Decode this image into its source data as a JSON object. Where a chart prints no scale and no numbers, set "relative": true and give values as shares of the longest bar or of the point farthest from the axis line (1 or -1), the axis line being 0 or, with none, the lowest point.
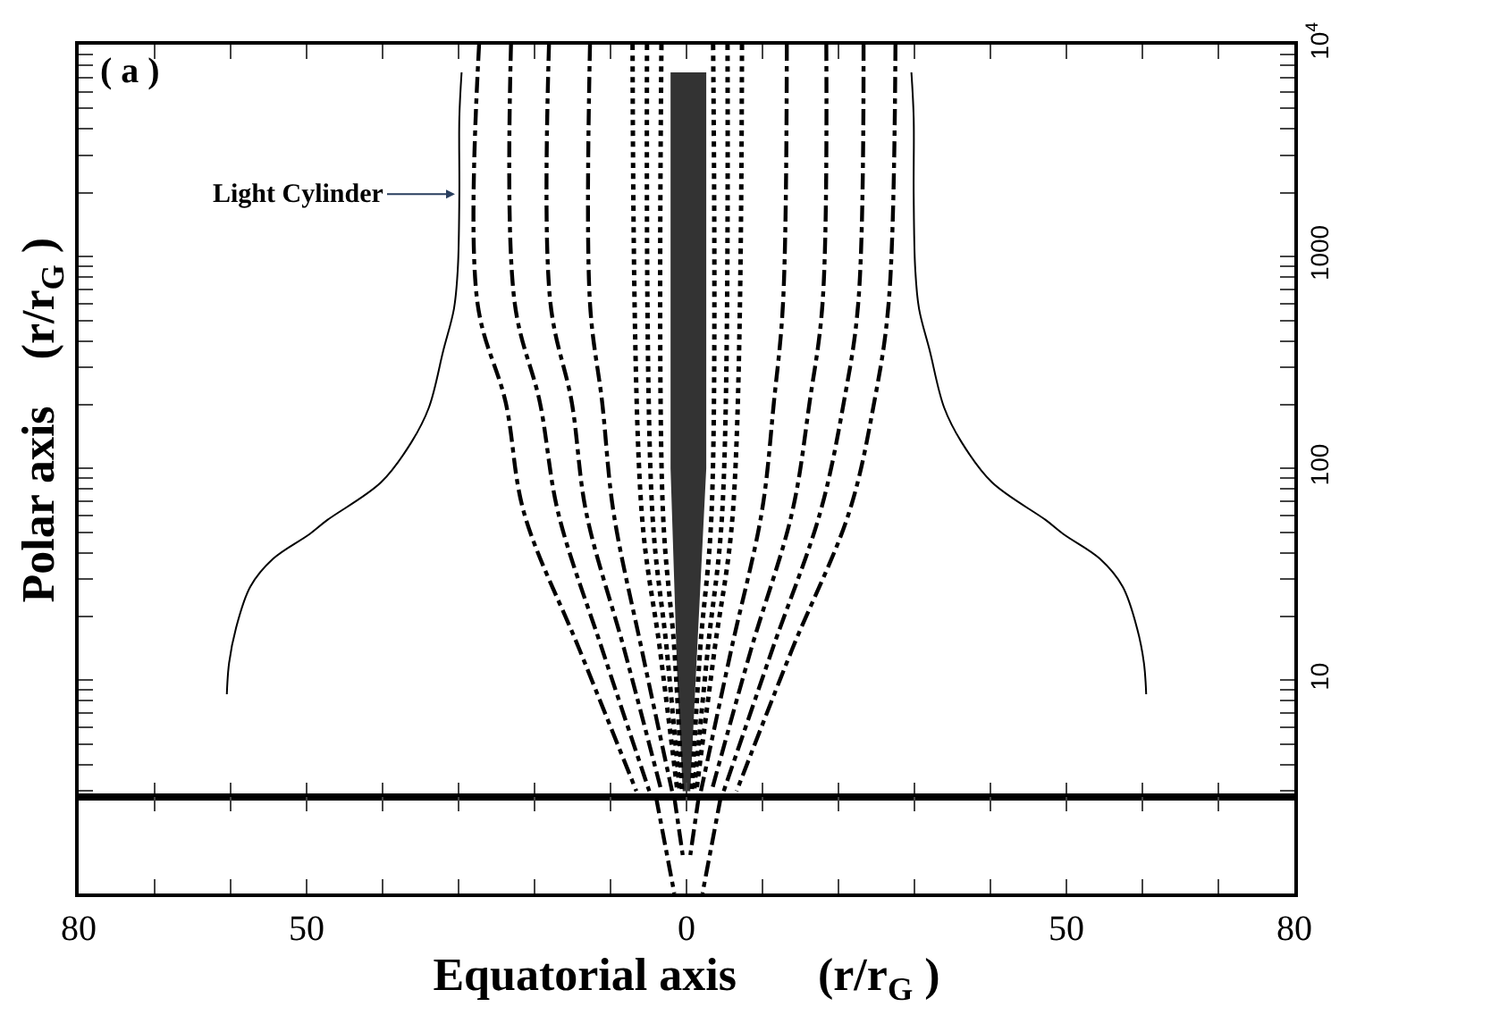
{
  "chart_data": [
    {
      "type": "line",
      "ylabel": "Polar axis    (r/r$_{G}$ )",
      "log": "y",
      "tick_labels": "y",
      "xlim": [
        -80,
        80
      ],
      "xticks": [
        {
          "value": -80,
          "label": null
        },
        {
          "value": -70,
          "label": null
        },
        {
          "value": -60,
          "label": null
        },
        {
          "value": -50,
          "label": null
        },
        {
          "value": -40,
          "label": null
        },
        {
          "value": -30,
          "label": null
        },
        {
          "value": -20,
          "label": null
        },
        {
          "value": -10,
          "label": null
        },
        {
          "value": 0,
          "label": null
        },
        {
          "value": 10,
          "label": null
        },
        {
          "value": 20,
          "label": null
        },
        {
          "value": 30,
          "label": null
        },
        {
          "value": 40,
          "label": null
        },
        {
          "value": 50,
          "label": null
        },
        {
          "value": 60,
          "label": null
        },
        {
          "value": 70,
          "label": null
        },
        {
          "value": 80,
          "label": null
        }
      ],
      "ylim": [
        2.8,
        10000
      ],
      "yticks": [
        {
          "value": 3,
          "label": null
        },
        {
          "value": 4,
          "label": null
        },
        {
          "value": 5,
          "label": null
        },
        {
          "value": 6,
          "label": null
        },
        {
          "value": 7,
          "label": null
        },
        {
          "value": 8,
          "label": null
        },
        {
          "value": 9,
          "label": null
        },
        10,
        {
          "value": 20,
          "label": null
        },
        {
          "value": 30,
          "label": null
        },
        {
          "value": 40,
          "label": null
        },
        {
          "value": 50,
          "label": null
        },
        {
          "value": 60,
          "label": null
        },
        {
          "value": 70,
          "label": null
        },
        {
          "value": 80,
          "label": null
        },
        {
          "value": 90,
          "label": null
        },
        100,
        {
          "value": 200,
          "label": null
        },
        {
          "value": 300,
          "label": null
        },
        {
          "value": 400,
          "label": null
        },
        {
          "value": 500,
          "label": null
        },
        {
          "value": 600,
          "label": null
        },
        {
          "value": 700,
          "label": null
        },
        {
          "value": 800,
          "label": null
        },
        {
          "value": 900,
          "label": null
        },
        1000,
        {
          "value": 2000,
          "label": null
        },
        {
          "value": 3000,
          "label": null
        },
        {
          "value": 4000,
          "label": null
        },
        {
          "value": 5000,
          "label": null
        },
        {
          "value": 6000,
          "label": null
        },
        {
          "value": 7000,
          "label": null
        },
        {
          "value": 8000,
          "label": null
        },
        {
          "value": 9000,
          "label": null
        },
        {
          "value": 10000,
          "label": "10$^{4}$"
        }
      ],
      "annotations": [
        "( a )",
        {
          "text": "Light Cylinder",
          "x": -30,
          "y": 1970
        }
      ],
      "series": [
        {
          "type": "area",
          "color": "#333333",
          "x": [
            -2.1,
            -2.1,
            -1.2,
            -0.5,
            0.5,
            1.2,
            2.6,
            2.6
          ],
          "values": [
            7400,
            100,
            10,
            3,
            3,
            10,
            100,
            7400
          ]
        },
        {
          "color": "#000000",
          "line_style": "solid",
          "x": [
            -29.6,
            -29.9,
            -29.9,
            -30.1,
            -30.6,
            -32.0,
            -33.9,
            -36.2,
            -40.2,
            -47.3,
            -49.6,
            -54.4,
            -57.4,
            -59.3,
            -60.2,
            -60.5
          ],
          "values": [
            7400,
            4500,
            1970,
            877,
            568,
            361,
            194,
            133,
            86,
            57,
            49,
            37.5,
            27.7,
            17.6,
            12.1,
            8.6
          ]
        },
        {
          "color": "#000000",
          "line_style": "solid",
          "x": [
            29.6,
            29.9,
            29.9,
            30.1,
            30.6,
            32.0,
            33.9,
            36.2,
            40.2,
            47.3,
            49.6,
            54.4,
            57.4,
            59.3,
            60.2,
            60.5
          ],
          "values": [
            7400,
            4500,
            1970,
            877,
            568,
            361,
            194,
            133,
            86,
            57,
            49,
            37.5,
            27.7,
            17.6,
            12.1,
            8.6
          ]
        },
        {
          "color": "#000000",
          "line_style": "dashed",
          "x": [
            -27.3,
            -27.5,
            -23.8,
            -21.4,
            -14.1,
            -6.6
          ],
          "values": [
            10000,
            600,
            205,
            62,
            14,
            3
          ]
        },
        {
          "color": "#000000",
          "line_style": "dashed",
          "x": [
            -23.1,
            -22.6,
            -19.3,
            -16.9,
            -11.1,
            -4.9
          ],
          "values": [
            10000,
            600,
            205,
            62,
            14,
            3
          ]
        },
        {
          "color": "#000000",
          "line_style": "dashed",
          "x": [
            -18.1,
            -17.9,
            -15.1,
            -13.2,
            -8.2,
            -3.3
          ],
          "values": [
            10000,
            600,
            205,
            62,
            14,
            3
          ]
        },
        {
          "color": "#000000",
          "line_style": "dashed",
          "x": [
            -12.7,
            -12.7,
            -11.1,
            -9.6,
            -5.9,
            -1.9
          ],
          "values": [
            10000,
            600,
            205,
            62,
            14,
            3
          ]
        },
        {
          "color": "#000000",
          "line_style": "dashed",
          "x": [
            13.2,
            12.7,
            11.5,
            9.9,
            5.9,
            1.9
          ],
          "values": [
            10000,
            600,
            205,
            62,
            14,
            3
          ]
        },
        {
          "color": "#000000",
          "line_style": "dashed",
          "x": [
            18.4,
            17.9,
            16.2,
            13.9,
            8.5,
            3.3
          ],
          "values": [
            10000,
            600,
            205,
            62,
            14,
            3
          ]
        },
        {
          "color": "#000000",
          "line_style": "dashed",
          "x": [
            23.3,
            22.6,
            20.7,
            17.6,
            11.3,
            4.9
          ],
          "values": [
            10000,
            600,
            205,
            62,
            14,
            3
          ]
        },
        {
          "color": "#000000",
          "line_style": "dashed",
          "x": [
            27.5,
            26.6,
            24.7,
            21.4,
            13.9,
            6.6
          ],
          "values": [
            10000,
            600,
            205,
            62,
            14,
            3
          ]
        },
        {
          "color": "#000000",
          "line_style": "dotted",
          "x": [
            -7.1,
            -5.9,
            -3.5,
            -1.2
          ],
          "values": [
            10000,
            62,
            14,
            3
          ]
        },
        {
          "color": "#000000",
          "line_style": "dotted",
          "x": [
            -5.2,
            -4.5,
            -2.6,
            -0.9
          ],
          "values": [
            10000,
            62,
            14,
            3
          ]
        },
        {
          "color": "#000000",
          "line_style": "dotted",
          "x": [
            -3.3,
            -3.1,
            -1.6,
            -0.6
          ],
          "values": [
            10000,
            62,
            14,
            3
          ]
        },
        {
          "color": "#000000",
          "line_style": "dotted",
          "x": [
            3.5,
            3.3,
            1.8,
            0.7
          ],
          "values": [
            10000,
            62,
            14,
            3
          ]
        },
        {
          "color": "#000000",
          "line_style": "dotted",
          "x": [
            5.4,
            4.7,
            2.8,
            1.0
          ],
          "values": [
            10000,
            62,
            14,
            3
          ]
        },
        {
          "color": "#000000",
          "line_style": "dotted",
          "x": [
            7.3,
            6.1,
            3.7,
            1.3
          ],
          "values": [
            10000,
            62,
            14,
            3
          ]
        }
      ]
    },
    {
      "type": "line",
      "relative": true,
      "tick_labels": "x",
      "xlabel": "Equatorial axis       (r/r$_{G}$ )",
      "xlim": [
        -80,
        80
      ],
      "xticks": [
        {
          "value": -80,
          "label": "80"
        },
        {
          "value": -70,
          "label": null
        },
        {
          "value": -60,
          "label": null
        },
        {
          "value": -50,
          "label": "50"
        },
        {
          "value": -40,
          "label": null
        },
        {
          "value": -30,
          "label": null
        },
        {
          "value": -20,
          "label": null
        },
        {
          "value": -10,
          "label": null
        },
        {
          "value": 0,
          "label": "0"
        },
        {
          "value": 10,
          "label": null
        },
        {
          "value": 20,
          "label": null
        },
        {
          "value": 30,
          "label": null
        },
        {
          "value": 40,
          "label": null
        },
        {
          "value": 50,
          "label": "50"
        },
        {
          "value": 60,
          "label": null
        },
        {
          "value": 70,
          "label": null
        },
        {
          "value": 80,
          "label": "80"
        }
      ],
      "series": [
        {
          "color": "#000000",
          "line_style": "dashed",
          "x": [
            -4.0,
            -1.6
          ],
          "values": [
            1,
            0
          ]
        },
        {
          "color": "#000000",
          "line_style": "dashed",
          "x": [
            -1.6,
            -0.5
          ],
          "values": [
            1,
            0.4
          ]
        },
        {
          "color": "#000000",
          "line_style": "dashed",
          "x": [
            1.6,
            0.5
          ],
          "values": [
            1,
            0.4
          ]
        },
        {
          "color": "#000000",
          "line_style": "dashed",
          "x": [
            4.5,
            2.1
          ],
          "values": [
            1,
            0
          ]
        }
      ]
    }
  ]
}
